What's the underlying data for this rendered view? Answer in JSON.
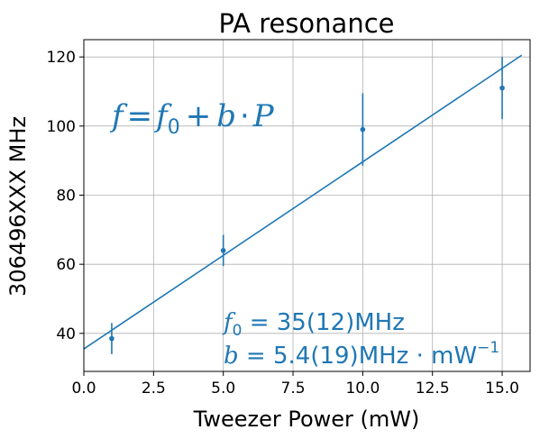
{
  "chart_data": {
    "type": "scatter",
    "title": "PA resonance",
    "xlabel": "Tweezer Power (mW)",
    "ylabel": "306496XXX MHz",
    "xlim": [
      0,
      16
    ],
    "ylim": [
      29,
      125
    ],
    "x_ticks": [
      "0.0",
      "2.5",
      "5.0",
      "7.5",
      "10.0",
      "12.5",
      "15.0"
    ],
    "x_tick_values": [
      0,
      2.5,
      5,
      7.5,
      10,
      12.5,
      15
    ],
    "y_ticks": [
      "40",
      "60",
      "80",
      "100",
      "120"
    ],
    "y_tick_values": [
      40,
      60,
      80,
      100,
      120
    ],
    "grid": true,
    "color": "#1f77b4",
    "series": [
      {
        "points": [
          {
            "x": 1,
            "y": 38.5,
            "yerr": 4.5
          },
          {
            "x": 5,
            "y": 64,
            "yerr": 4.5
          },
          {
            "x": 10,
            "y": 99,
            "yerr": 10.5
          },
          {
            "x": 15,
            "y": 111,
            "yerr": 9
          }
        ]
      }
    ],
    "fit_line": {
      "x": [
        0,
        15.7
      ],
      "y": [
        35.5,
        120.5
      ]
    },
    "annotations": {
      "formula_lhs": "f",
      "formula_eq": "=",
      "formula_f": "f",
      "formula_f_sub": "0",
      "formula_plus": "+",
      "formula_b": "b",
      "formula_dot": "·",
      "formula_p": "P",
      "param1_f": "f",
      "param1_sub": "0",
      "param1_rest": " = 35(12)MHz",
      "param2_b": "b",
      "param2_rest": " = 5.4(19)MHz · mW",
      "param2_sup": "−1"
    }
  }
}
